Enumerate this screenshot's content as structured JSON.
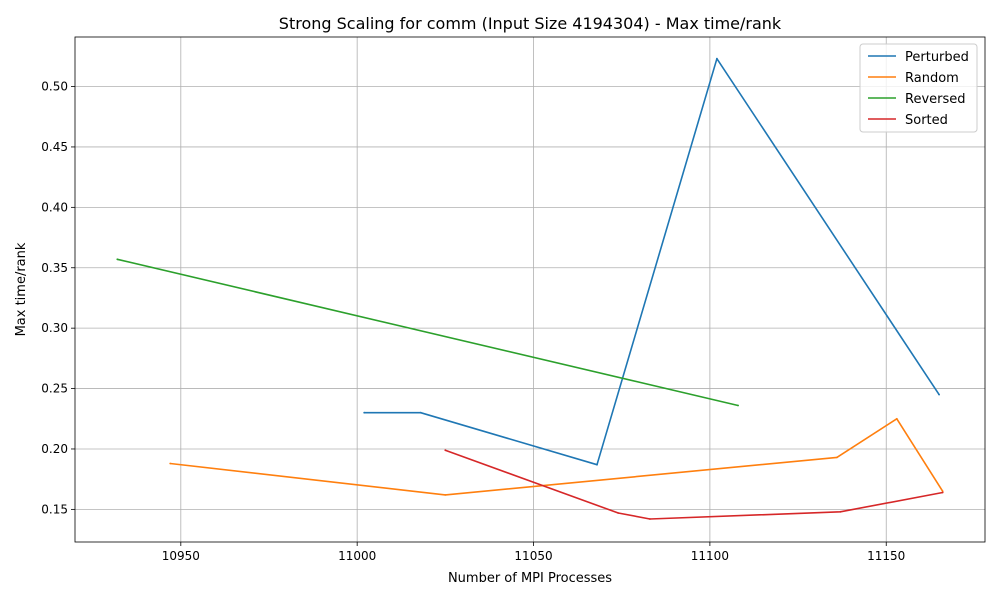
{
  "chart_data": {
    "type": "line",
    "title": "Strong Scaling for comm (Input Size 4194304) - Max time/rank",
    "xlabel": "Number of MPI Processes",
    "ylabel": "Max time/rank",
    "xlim": [
      10920,
      11178
    ],
    "ylim": [
      0.123,
      0.541
    ],
    "xticks": [
      10950,
      11000,
      11050,
      11100,
      11150
    ],
    "xtick_labels": [
      "10950",
      "11000",
      "11050",
      "11100",
      "11150"
    ],
    "yticks": [
      0.15,
      0.2,
      0.25,
      0.3,
      0.35,
      0.4,
      0.45,
      0.5
    ],
    "ytick_labels": [
      "0.15",
      "0.20",
      "0.25",
      "0.30",
      "0.35",
      "0.40",
      "0.45",
      "0.50"
    ],
    "grid": true,
    "legend_position": "top-right",
    "series": [
      {
        "name": "Perturbed",
        "color": "#1f77b4",
        "x": [
          11002,
          11018,
          11068,
          11102,
          11165
        ],
        "y": [
          0.23,
          0.23,
          0.187,
          0.523,
          0.245
        ]
      },
      {
        "name": "Random",
        "color": "#ff7f0e",
        "x": [
          10947,
          11025,
          11136,
          11153,
          11166
        ],
        "y": [
          0.188,
          0.162,
          0.193,
          0.225,
          0.165
        ]
      },
      {
        "name": "Reversed",
        "color": "#2ca02c",
        "x": [
          10932,
          11108
        ],
        "y": [
          0.357,
          0.236
        ]
      },
      {
        "name": "Sorted",
        "color": "#d62728",
        "x": [
          11025,
          11074,
          11083,
          11137,
          11166
        ],
        "y": [
          0.199,
          0.147,
          0.142,
          0.148,
          0.164
        ]
      }
    ]
  }
}
